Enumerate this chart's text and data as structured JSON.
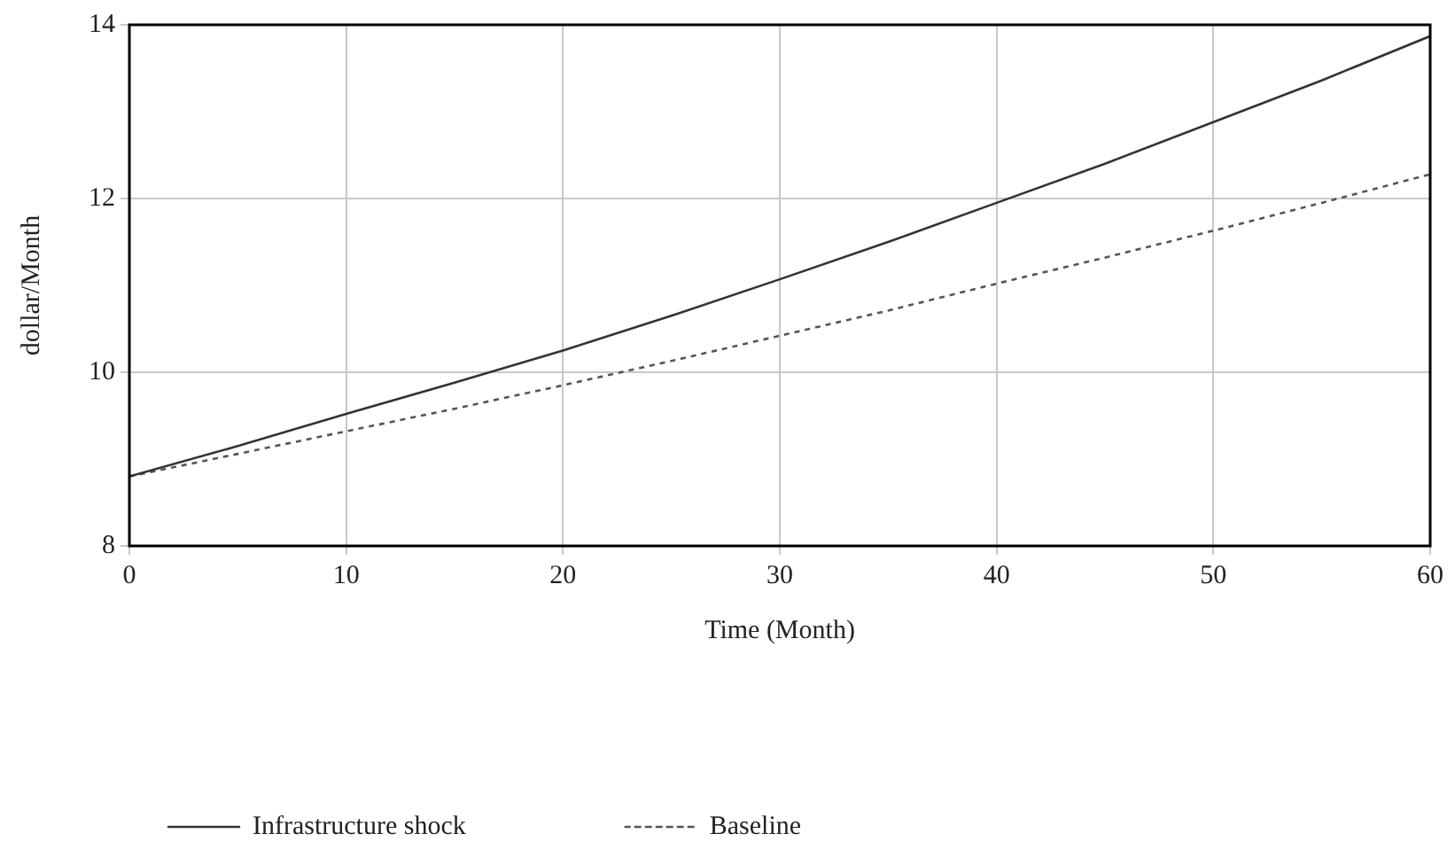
{
  "chart_data": {
    "type": "line",
    "xlabel": "Time (Month)",
    "ylabel": "dollar/Month",
    "x": [
      0,
      5,
      10,
      15,
      20,
      25,
      30,
      35,
      40,
      45,
      50,
      55,
      60
    ],
    "series": [
      {
        "name": "Infrastructure shock",
        "color": "#333333",
        "line_style": "solid",
        "values": [
          8.8,
          9.15,
          9.52,
          9.88,
          10.25,
          10.65,
          11.07,
          11.5,
          11.95,
          12.4,
          12.88,
          13.36,
          13.87
        ]
      },
      {
        "name": "Baseline",
        "color": "#555555",
        "line_style": "dotted",
        "values": [
          8.8,
          9.06,
          9.32,
          9.58,
          9.85,
          10.13,
          10.42,
          10.71,
          11.02,
          11.32,
          11.63,
          11.95,
          12.28
        ]
      }
    ],
    "xlim": [
      0,
      60
    ],
    "xticks": [
      0,
      10,
      20,
      30,
      40,
      50,
      60
    ],
    "ylim": [
      8,
      14
    ],
    "yticks": [
      8,
      10,
      12,
      14
    ],
    "grid": true,
    "legend": "bottom",
    "marker": "none"
  }
}
